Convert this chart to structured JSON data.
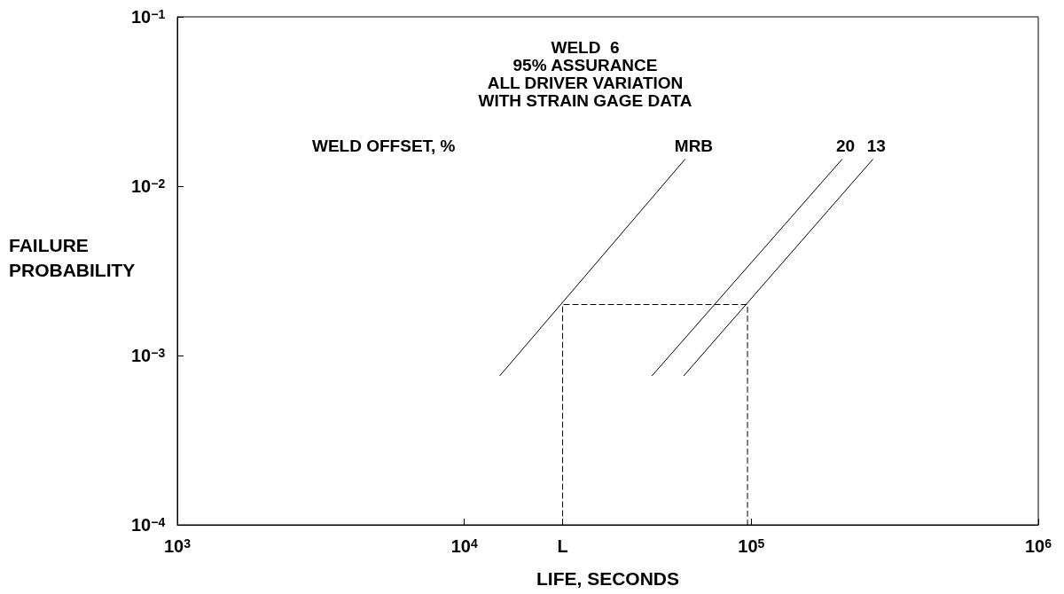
{
  "chart_data": {
    "type": "line",
    "title": "WELD  6\n95% ASSURANCE\nALL DRIVER VARIATION\nWITH STRAIN GAGE DATA",
    "xlabel": "LIFE, SECONDS",
    "ylabel": "FAILURE\nPROBABILITY",
    "annotations": [
      "WELD OFFSET, %"
    ],
    "log": "xy",
    "marker": "none",
    "line_style": "solid",
    "grid": false,
    "legend": false,
    "xlim": [
      1000,
      1000000
    ],
    "xticks": [
      {
        "value": 1000,
        "label": "10$^{3}$"
      },
      {
        "value": 10000,
        "label": "10$^{4}$"
      },
      {
        "value": 22000,
        "label": "L"
      },
      {
        "value": 100000,
        "label": "10$^{5}$"
      },
      {
        "value": 1000000,
        "label": "10$^{6}$"
      }
    ],
    "ylim": [
      0.0001,
      0.1
    ],
    "yticks": [
      {
        "value": 0.0001,
        "label": "10$^{−4}$"
      },
      {
        "value": 0.001,
        "label": "10$^{−3}$"
      },
      {
        "value": 0.01,
        "label": "10$^{−2}$"
      },
      {
        "value": 0.1,
        "label": "10$^{−1}$"
      }
    ],
    "series": [
      {
        "name": "MRB",
        "color": "#000000",
        "x": [
          13300,
          58700
        ],
        "values": [
          0.00076,
          0.0144
        ]
      },
      {
        "name": "20",
        "color": "#000000",
        "x": [
          45100,
          207000
        ],
        "values": [
          0.00076,
          0.0144
        ]
      },
      {
        "name": "13",
        "color": "#000000",
        "x": [
          58200,
          265000
        ],
        "values": [
          0.00076,
          0.0144
        ]
      },
      {
        "color": "#000000",
        "line_style": "dashed",
        "x": [
          22000,
          22000,
          97000,
          97000
        ],
        "values": [
          0.0001,
          0.002,
          0.002,
          0.0001
        ]
      }
    ]
  }
}
